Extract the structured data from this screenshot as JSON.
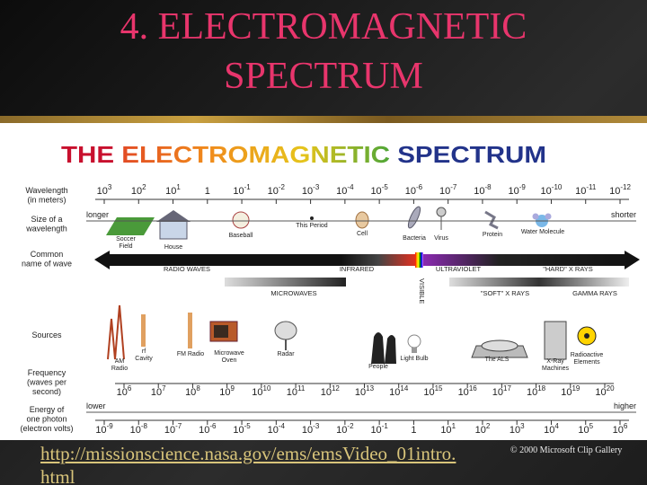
{
  "slide": {
    "title": [
      "4. ELECTROMAGNETIC",
      "SPECTRUM"
    ],
    "link": "http://missionscience.nasa.gov/ems/emsVideo_01intro.html",
    "credit": "© 2000 Microsoft Clip Gallery"
  },
  "figure": {
    "title": [
      "THE",
      "ELECTROMAGNETIC",
      "SPECTRUM"
    ],
    "row_labels": {
      "wavelength": [
        "Wavelength",
        "(in meters)"
      ],
      "size": [
        "Size of a",
        "wavelength"
      ],
      "name": [
        "Common",
        "name of wave"
      ],
      "sources": [
        "Sources"
      ],
      "frequency": [
        "Frequency",
        "(waves per",
        "second)"
      ],
      "energy": [
        "Energy of",
        "one photon",
        "(electron volts)"
      ]
    },
    "wavelength": [
      {
        "text": "10",
        "sup": "3"
      },
      {
        "text": "10",
        "sup": "2"
      },
      {
        "text": "10",
        "sup": "1"
      },
      {
        "text": "1"
      },
      {
        "text": "10",
        "sup": "-1"
      },
      {
        "text": "10",
        "sup": "-2"
      },
      {
        "text": "10",
        "sup": "-3"
      },
      {
        "text": "10",
        "sup": "-4"
      },
      {
        "text": "10",
        "sup": "-5"
      },
      {
        "text": "10",
        "sup": "-6"
      },
      {
        "text": "10",
        "sup": "-7"
      },
      {
        "text": "10",
        "sup": "-8"
      },
      {
        "text": "10",
        "sup": "-9"
      },
      {
        "text": "10",
        "sup": "-10"
      },
      {
        "text": "10",
        "sup": "-11"
      },
      {
        "text": "10",
        "sup": "-12"
      }
    ],
    "frequency": [
      {
        "text": "10",
        "sup": "6"
      },
      {
        "text": "10",
        "sup": "7"
      },
      {
        "text": "10",
        "sup": "8"
      },
      {
        "text": "10",
        "sup": "9"
      },
      {
        "text": "10",
        "sup": "10"
      },
      {
        "text": "10",
        "sup": "11"
      },
      {
        "text": "10",
        "sup": "12"
      },
      {
        "text": "10",
        "sup": "13"
      },
      {
        "text": "10",
        "sup": "14"
      },
      {
        "text": "10",
        "sup": "15"
      },
      {
        "text": "10",
        "sup": "16"
      },
      {
        "text": "10",
        "sup": "17"
      },
      {
        "text": "10",
        "sup": "18"
      },
      {
        "text": "10",
        "sup": "19"
      },
      {
        "text": "10",
        "sup": "20"
      }
    ],
    "energy": [
      {
        "text": "10",
        "sup": "-9"
      },
      {
        "text": "10",
        "sup": "-8"
      },
      {
        "text": "10",
        "sup": "-7"
      },
      {
        "text": "10",
        "sup": "-6"
      },
      {
        "text": "10",
        "sup": "-5"
      },
      {
        "text": "10",
        "sup": "-4"
      },
      {
        "text": "10",
        "sup": "-3"
      },
      {
        "text": "10",
        "sup": "-2"
      },
      {
        "text": "10",
        "sup": "-1"
      },
      {
        "text": "1"
      },
      {
        "text": "10",
        "sup": "1"
      },
      {
        "text": "10",
        "sup": "2"
      },
      {
        "text": "10",
        "sup": "3"
      },
      {
        "text": "10",
        "sup": "4"
      },
      {
        "text": "10",
        "sup": "5"
      },
      {
        "text": "10",
        "sup": "6"
      }
    ],
    "wavelength_ends": [
      "longer",
      "shorter"
    ],
    "energy_ends": [
      "lower",
      "higher"
    ],
    "sizes": [
      [
        "Soccer",
        "Field"
      ],
      [
        "House"
      ],
      [
        "Baseball"
      ],
      [
        "This Period"
      ],
      [
        "Cell"
      ],
      [
        "Bacteria"
      ],
      [
        "Virus"
      ],
      [
        "Protein"
      ],
      [
        "Water Molecule"
      ]
    ],
    "bands": [
      "RADIO WAVES",
      "INFRARED",
      "VISIBLE",
      "ULTRAVIOLET",
      "\"HARD\" X RAYS",
      "MICROWAVES",
      "\"SOFT\" X RAYS",
      "GAMMA RAYS"
    ],
    "sources": [
      [
        "AM",
        "Radio"
      ],
      [
        "rf",
        "Cavity"
      ],
      [
        "FM Radio"
      ],
      [
        "Microwave",
        "Oven"
      ],
      [
        "Radar"
      ],
      [
        "People"
      ],
      [
        "Light Bulb"
      ],
      [
        "The ALS"
      ],
      [
        "X-Ray",
        "Machines"
      ],
      [
        "Radioactive",
        "Elements"
      ]
    ]
  }
}
